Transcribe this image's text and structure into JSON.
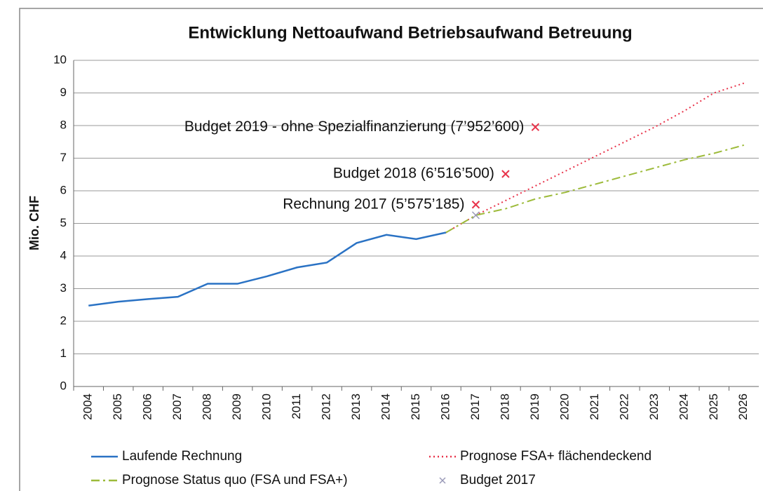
{
  "chart_data": {
    "type": "line",
    "title": "Entwicklung Nettoaufwand Betriebsaufwand Betreuung",
    "y_label": "Mio. CHF",
    "categories": [
      "2004",
      "2005",
      "2006",
      "2007",
      "2008",
      "2009",
      "2010",
      "2011",
      "2012",
      "2013",
      "2014",
      "2015",
      "2016",
      "2017",
      "2018",
      "2019",
      "2020",
      "2021",
      "2022",
      "2023",
      "2024",
      "2025",
      "2026"
    ],
    "series": [
      {
        "name": "Laufende Rechnung",
        "color": "#2a72c4",
        "style": "solid",
        "values": [
          2.48,
          2.6,
          2.68,
          2.75,
          3.15,
          3.15,
          3.38,
          3.65,
          3.8,
          4.4,
          4.65,
          4.52,
          4.72,
          null,
          null,
          null,
          null,
          null,
          null,
          null,
          null,
          null,
          null
        ]
      },
      {
        "name": "Prognose FSA+ flächendeckend",
        "color": "#e8334a",
        "style": "dotted",
        "values": [
          null,
          null,
          null,
          null,
          null,
          null,
          null,
          null,
          null,
          null,
          null,
          null,
          4.72,
          5.25,
          5.7,
          6.15,
          6.6,
          7.05,
          7.5,
          7.95,
          8.45,
          9.0,
          9.3
        ]
      },
      {
        "name": "Prognose Status quo (FSA und FSA+)",
        "color": "#9dbb3a",
        "style": "dashdot",
        "values": [
          null,
          null,
          null,
          null,
          null,
          null,
          null,
          null,
          null,
          null,
          null,
          null,
          4.72,
          5.25,
          5.45,
          5.75,
          5.95,
          6.2,
          6.45,
          6.7,
          6.95,
          7.15,
          7.4
        ]
      },
      {
        "name": "Budget 2017",
        "color": "#9a9ab8",
        "style": "marker",
        "values": [
          null,
          null,
          null,
          null,
          null,
          null,
          null,
          null,
          null,
          null,
          null,
          null,
          null,
          5.25,
          null,
          null,
          null,
          null,
          null,
          null,
          null,
          null,
          null
        ]
      }
    ],
    "annotations": [
      {
        "text": "Budget 2019 - ohne Spezialfinanzierung (7’952’600)",
        "x": "2019",
        "y": 7.9526,
        "color": "#e8334a"
      },
      {
        "text": "Budget 2018 (6’516’500)",
        "x": "2018",
        "y": 6.5165,
        "color": "#e8334a"
      },
      {
        "text": "Rechnung 2017 (5’575’185)",
        "x": "2017",
        "y": 5.575185,
        "color": "#e8334a"
      }
    ],
    "ylim": [
      0,
      10
    ],
    "yticks": [
      0,
      1,
      2,
      3,
      4,
      5,
      6,
      7,
      8,
      9,
      10
    ],
    "grid": true
  }
}
